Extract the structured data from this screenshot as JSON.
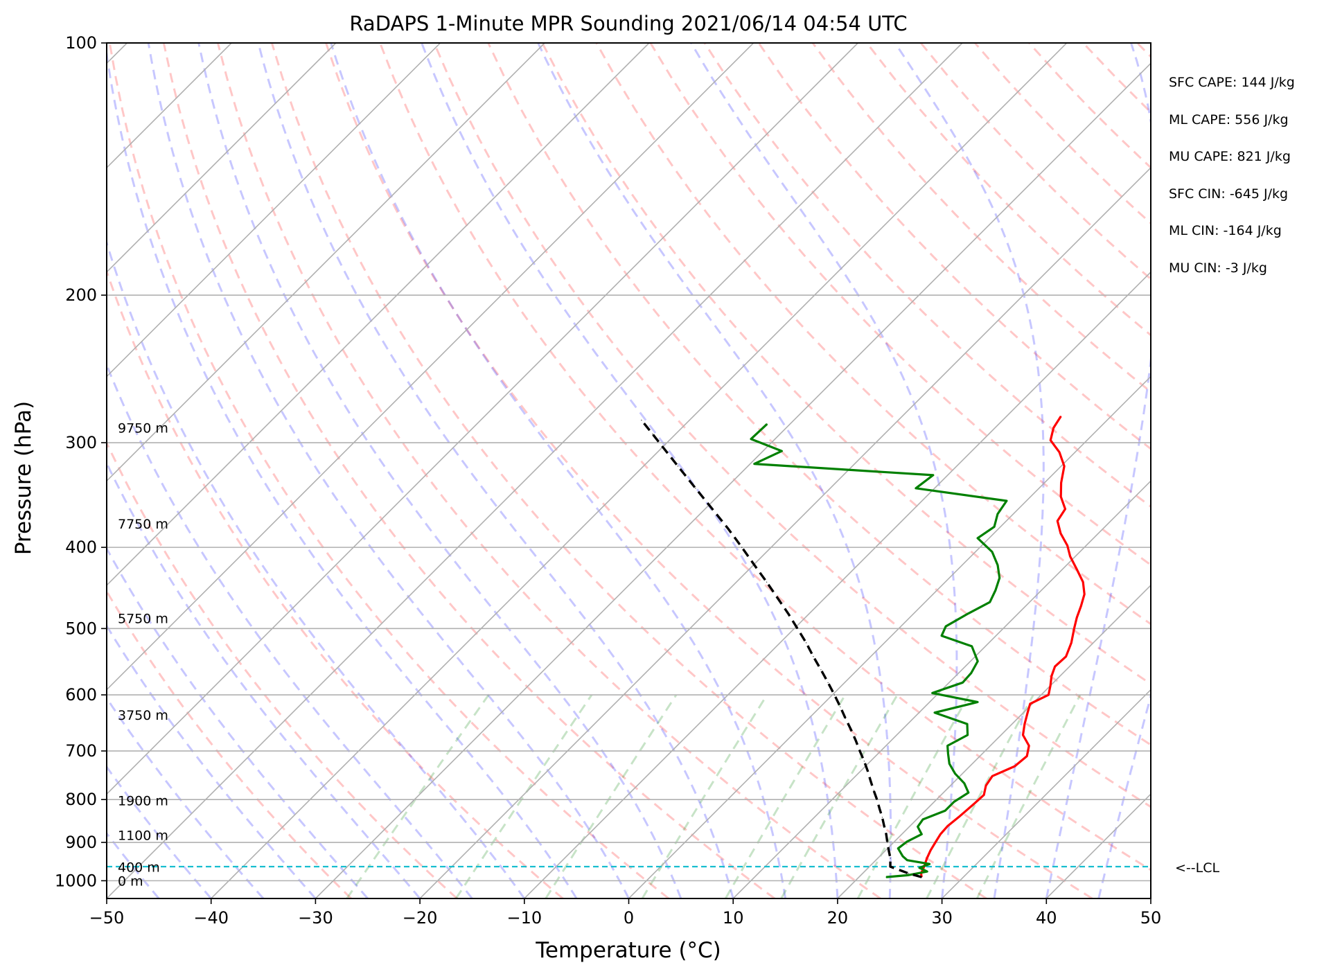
{
  "chart_data": {
    "type": "line",
    "subtype": "skew-t log-p sounding",
    "title": "RaDAPS 1-Minute MPR Sounding 2021/06/14 04:54 UTC",
    "xlabel": "Temperature (°C)",
    "ylabel": "Pressure (hPa)",
    "xlim": [
      -50,
      50
    ],
    "ylim": [
      1050,
      100
    ],
    "y_scale": "log",
    "grid": true,
    "x_ticks": [
      "−50",
      "−40",
      "−30",
      "−20",
      "−10",
      "0",
      "10",
      "20",
      "30",
      "40",
      "50"
    ],
    "y_ticks": [
      {
        "p": 100,
        "label": "100"
      },
      {
        "p": 200,
        "label": "200"
      },
      {
        "p": 300,
        "label": "300"
      },
      {
        "p": 400,
        "label": "400"
      },
      {
        "p": 500,
        "label": "500"
      },
      {
        "p": 600,
        "label": "600"
      },
      {
        "p": 700,
        "label": "700"
      },
      {
        "p": 800,
        "label": "800"
      },
      {
        "p": 900,
        "label": "900"
      },
      {
        "p": 1000,
        "label": "1000"
      }
    ],
    "height_labels": [
      {
        "p": 288,
        "label": "9750 m"
      },
      {
        "p": 375,
        "label": "7750 m"
      },
      {
        "p": 486,
        "label": "5750 m"
      },
      {
        "p": 634,
        "label": "3750 m"
      },
      {
        "p": 802,
        "label": "1900 m"
      },
      {
        "p": 882,
        "label": "1100 m"
      },
      {
        "p": 963,
        "label": "400 m"
      },
      {
        "p": 1000,
        "label": "0 m"
      }
    ],
    "lcl": {
      "p": 962,
      "label": "<--LCL",
      "color": "#17becf"
    },
    "series": [
      {
        "key": "temperature",
        "color": "#ff0000",
        "points": [
          [
            990,
            26.0
          ],
          [
            980,
            25.6
          ],
          [
            960,
            25.2
          ],
          [
            940,
            24.7
          ],
          [
            920,
            24.3
          ],
          [
            900,
            24.0
          ],
          [
            880,
            23.7
          ],
          [
            860,
            23.6
          ],
          [
            840,
            23.8
          ],
          [
            810,
            24.0
          ],
          [
            790,
            24.1
          ],
          [
            770,
            23.4
          ],
          [
            750,
            23.1
          ],
          [
            730,
            24.3
          ],
          [
            710,
            24.5
          ],
          [
            690,
            23.7
          ],
          [
            670,
            22.1
          ],
          [
            650,
            21.2
          ],
          [
            630,
            20.4
          ],
          [
            615,
            19.8
          ],
          [
            600,
            20.7
          ],
          [
            585,
            20.0
          ],
          [
            570,
            19.2
          ],
          [
            555,
            18.6
          ],
          [
            540,
            18.7
          ],
          [
            520,
            17.9
          ],
          [
            500,
            16.8
          ],
          [
            485,
            16.0
          ],
          [
            470,
            15.3
          ],
          [
            455,
            14.5
          ],
          [
            440,
            13.2
          ],
          [
            425,
            11.4
          ],
          [
            410,
            9.5
          ],
          [
            398,
            8.2
          ],
          [
            385,
            6.4
          ],
          [
            372,
            4.9
          ],
          [
            360,
            4.5
          ],
          [
            348,
            2.9
          ],
          [
            335,
            1.6
          ],
          [
            320,
            0.3
          ],
          [
            308,
            -1.5
          ],
          [
            298,
            -3.5
          ],
          [
            288,
            -4.4
          ],
          [
            279,
            -4.8
          ]
        ]
      },
      {
        "key": "dewpoint",
        "color": "#008000",
        "points": [
          [
            990,
            22.6
          ],
          [
            985,
            24.5
          ],
          [
            975,
            26.0
          ],
          [
            965,
            24.9
          ],
          [
            955,
            25.5
          ],
          [
            945,
            23.0
          ],
          [
            935,
            22.2
          ],
          [
            915,
            21.0
          ],
          [
            898,
            21.2
          ],
          [
            880,
            21.9
          ],
          [
            862,
            20.8
          ],
          [
            845,
            20.6
          ],
          [
            825,
            21.9
          ],
          [
            805,
            21.9
          ],
          [
            785,
            22.4
          ],
          [
            765,
            21.1
          ],
          [
            745,
            19.3
          ],
          [
            725,
            17.8
          ],
          [
            705,
            16.7
          ],
          [
            690,
            15.9
          ],
          [
            670,
            16.8
          ],
          [
            650,
            15.7
          ],
          [
            630,
            11.5
          ],
          [
            612,
            14.6
          ],
          [
            597,
            9.4
          ],
          [
            580,
            11.3
          ],
          [
            565,
            11.2
          ],
          [
            547,
            10.7
          ],
          [
            525,
            8.7
          ],
          [
            510,
            4.8
          ],
          [
            497,
            4.3
          ],
          [
            480,
            5.2
          ],
          [
            465,
            6.2
          ],
          [
            450,
            5.6
          ],
          [
            435,
            4.8
          ],
          [
            420,
            3.4
          ],
          [
            405,
            1.6
          ],
          [
            390,
            -1.1
          ],
          [
            378,
            -0.6
          ],
          [
            365,
            -1.5
          ],
          [
            352,
            -1.9
          ],
          [
            340,
            -11.8
          ],
          [
            328,
            -11.4
          ],
          [
            318,
            -29.6
          ],
          [
            307,
            -28.2
          ],
          [
            297,
            -32.3
          ],
          [
            285,
            -32.2
          ]
        ]
      },
      {
        "key": "parcel",
        "color": "#000000",
        "dashed": true,
        "points": [
          [
            990,
            26.0
          ],
          [
            980,
            24.4
          ],
          [
            962,
            22.0
          ],
          [
            940,
            21.2
          ],
          [
            920,
            20.3
          ],
          [
            900,
            19.4
          ],
          [
            880,
            18.5
          ],
          [
            860,
            17.5
          ],
          [
            840,
            16.5
          ],
          [
            820,
            15.4
          ],
          [
            800,
            14.3
          ],
          [
            780,
            13.1
          ],
          [
            760,
            11.9
          ],
          [
            740,
            10.7
          ],
          [
            720,
            9.4
          ],
          [
            700,
            8.0
          ],
          [
            680,
            6.6
          ],
          [
            660,
            5.1
          ],
          [
            640,
            3.5
          ],
          [
            620,
            1.9
          ],
          [
            600,
            0.2
          ],
          [
            580,
            -1.6
          ],
          [
            560,
            -3.5
          ],
          [
            540,
            -5.5
          ],
          [
            520,
            -7.5
          ],
          [
            500,
            -9.7
          ],
          [
            480,
            -12.0
          ],
          [
            460,
            -14.5
          ],
          [
            440,
            -17.1
          ],
          [
            420,
            -19.9
          ],
          [
            400,
            -22.8
          ],
          [
            380,
            -25.9
          ],
          [
            360,
            -29.3
          ],
          [
            340,
            -32.9
          ],
          [
            320,
            -36.7
          ],
          [
            305,
            -39.7
          ],
          [
            293,
            -42.2
          ],
          [
            282,
            -44.6
          ]
        ]
      }
    ]
  },
  "cape_values": [
    "SFC CAPE: 144 J/kg",
    "ML CAPE: 556 J/kg",
    "MU CAPE: 821 J/kg",
    "SFC CIN: -645 J/kg",
    "ML CIN: -164 J/kg",
    "MU CIN: -3 J/kg"
  ]
}
